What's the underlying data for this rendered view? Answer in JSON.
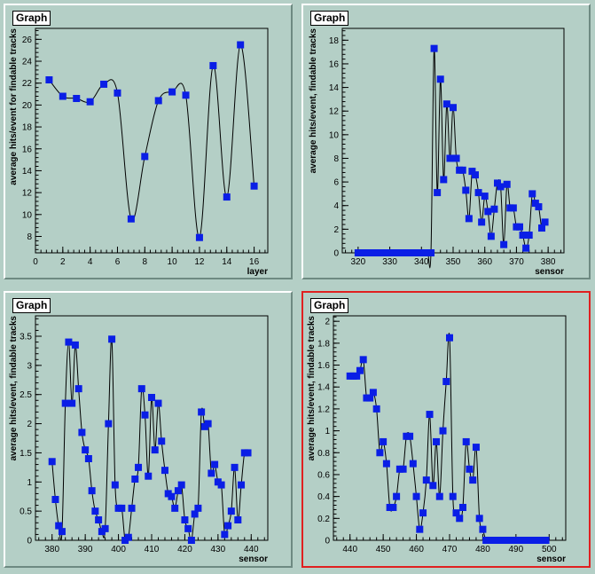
{
  "chart_data": [
    {
      "type": "scatter",
      "title": "Graph",
      "xlabel": "layer",
      "ylabel": "average hits/event for findable tracks",
      "xlim": [
        0,
        17
      ],
      "ylim": [
        6.5,
        27
      ],
      "xticks": [
        0,
        2,
        4,
        6,
        8,
        10,
        12,
        14,
        16
      ],
      "yticks": [
        8,
        10,
        12,
        14,
        16,
        18,
        20,
        22,
        24,
        26
      ],
      "x": [
        1,
        2,
        3,
        4,
        5,
        6,
        7,
        8,
        9,
        10,
        11,
        12,
        13,
        14,
        15,
        16
      ],
      "y": [
        22.3,
        20.8,
        20.6,
        20.3,
        21.9,
        21.1,
        9.6,
        15.3,
        20.4,
        21.2,
        20.9,
        7.9,
        23.6,
        11.6,
        25.5,
        12.6
      ],
      "marker_color": "#0a1ee6",
      "selected": false
    },
    {
      "type": "scatter",
      "title": "Graph",
      "xlabel": "sensor",
      "ylabel": "average hits/event, findable tracks",
      "xlim": [
        315,
        385
      ],
      "ylim": [
        0,
        19
      ],
      "xticks": [
        320,
        330,
        340,
        350,
        360,
        370,
        380
      ],
      "yticks": [
        0,
        2,
        4,
        6,
        8,
        10,
        12,
        14,
        16,
        18
      ],
      "x": [
        320,
        321,
        322,
        323,
        324,
        325,
        326,
        327,
        328,
        329,
        330,
        331,
        332,
        333,
        334,
        335,
        336,
        337,
        338,
        339,
        340,
        341,
        342,
        343,
        344,
        345,
        346,
        347,
        348,
        349,
        350,
        351,
        352,
        353,
        354,
        355,
        356,
        357,
        358,
        359,
        360,
        361,
        362,
        363,
        364,
        365,
        366,
        367,
        368,
        369,
        370,
        371,
        372,
        373,
        374,
        375,
        376,
        377,
        378,
        379
      ],
      "y": [
        0,
        0,
        0,
        0,
        0,
        0,
        0,
        0,
        0,
        0,
        0,
        0,
        0,
        0,
        0,
        0,
        0,
        0,
        0,
        0,
        0,
        0,
        0,
        0,
        17.3,
        5.1,
        14.7,
        6.2,
        12.6,
        8.0,
        12.3,
        8.0,
        7.0,
        7.0,
        5.3,
        2.9,
        6.9,
        6.6,
        5.1,
        2.6,
        4.8,
        3.5,
        1.4,
        3.7,
        5.9,
        5.6,
        0.7,
        5.8,
        3.8,
        3.8,
        2.2,
        2.2,
        1.5,
        0.4,
        1.5,
        5.0,
        4.2,
        3.9,
        2.1,
        2.6
      ],
      "marker_color": "#0a1ee6",
      "selected": false
    },
    {
      "type": "scatter",
      "title": "Graph",
      "xlabel": "sensor",
      "ylabel": "average hits/event, findable tracks",
      "xlim": [
        375,
        445
      ],
      "ylim": [
        0,
        3.85
      ],
      "xticks": [
        380,
        390,
        400,
        410,
        420,
        430,
        440
      ],
      "yticks": [
        0,
        0.5,
        1,
        1.5,
        2,
        2.5,
        3,
        3.5
      ],
      "ytick_labels": [
        "0",
        "0.5",
        "1",
        "1.5",
        "2",
        "2.5",
        "3",
        "3.5"
      ],
      "x": [
        380,
        381,
        382,
        383,
        384,
        385,
        386,
        387,
        388,
        389,
        390,
        391,
        392,
        393,
        394,
        395,
        396,
        397,
        398,
        399,
        400,
        401,
        402,
        403,
        404,
        405,
        406,
        407,
        408,
        409,
        410,
        411,
        412,
        413,
        414,
        415,
        416,
        417,
        418,
        419,
        420,
        421,
        422,
        423,
        424,
        425,
        426,
        427,
        428,
        429,
        430,
        431,
        432,
        433,
        434,
        435,
        436,
        437,
        438,
        439
      ],
      "y": [
        1.35,
        0.7,
        0.25,
        0.15,
        2.35,
        3.4,
        2.35,
        3.35,
        2.6,
        1.85,
        1.55,
        1.4,
        0.85,
        0.5,
        0.35,
        0.15,
        0.2,
        2.0,
        3.45,
        0.95,
        0.55,
        0.55,
        0.0,
        0.05,
        0.55,
        1.05,
        1.25,
        2.6,
        2.15,
        1.1,
        2.45,
        1.55,
        2.35,
        1.7,
        1.2,
        0.8,
        0.75,
        0.55,
        0.85,
        0.95,
        0.35,
        0.2,
        0.0,
        0.45,
        0.55,
        2.2,
        1.95,
        2.0,
        1.15,
        1.3,
        1.0,
        0.95,
        0.1,
        0.25,
        0.5,
        1.25,
        0.35,
        0.95,
        1.5,
        1.5
      ],
      "marker_color": "#0a1ee6",
      "selected": false
    },
    {
      "type": "scatter",
      "title": "Graph",
      "xlabel": "sensor",
      "ylabel": "average hits/event, findable tracks",
      "xlim": [
        435,
        505
      ],
      "ylim": [
        0,
        2.05
      ],
      "xticks": [
        440,
        450,
        460,
        470,
        480,
        490,
        500
      ],
      "yticks": [
        0,
        0.2,
        0.4,
        0.6,
        0.8,
        1,
        1.2,
        1.4,
        1.6,
        1.8,
        2
      ],
      "ytick_labels": [
        "0",
        "0.2",
        "0.4",
        "0.6",
        "0.8",
        "1",
        "1.2",
        "1.4",
        "1.6",
        "1.8",
        "2"
      ],
      "x": [
        440,
        441,
        442,
        443,
        444,
        445,
        446,
        447,
        448,
        449,
        450,
        451,
        452,
        453,
        454,
        455,
        456,
        457,
        458,
        459,
        460,
        461,
        462,
        463,
        464,
        465,
        466,
        467,
        468,
        469,
        470,
        471,
        472,
        473,
        474,
        475,
        476,
        477,
        478,
        479,
        480,
        481,
        482,
        483,
        484,
        485,
        486,
        487,
        488,
        489,
        490,
        491,
        492,
        493,
        494,
        495,
        496,
        497,
        498,
        499
      ],
      "y": [
        1.5,
        1.5,
        1.5,
        1.55,
        1.65,
        1.3,
        1.3,
        1.35,
        1.2,
        0.8,
        0.9,
        0.7,
        0.3,
        0.3,
        0.4,
        0.65,
        0.65,
        0.95,
        0.95,
        0.7,
        0.4,
        0.1,
        0.25,
        0.55,
        1.15,
        0.5,
        0.9,
        0.4,
        1.0,
        1.45,
        1.85,
        0.4,
        0.25,
        0.2,
        0.3,
        0.9,
        0.65,
        0.55,
        0.85,
        0.2,
        0.1,
        0,
        0,
        0,
        0,
        0,
        0,
        0,
        0,
        0,
        0,
        0,
        0,
        0,
        0,
        0,
        0,
        0,
        0,
        0
      ],
      "marker_color": "#0a1ee6",
      "selected": true
    }
  ]
}
